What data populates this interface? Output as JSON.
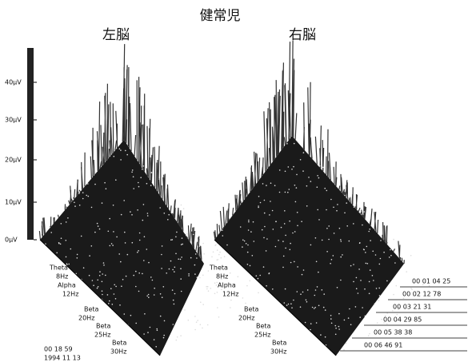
{
  "title": "健常児",
  "panels": [
    {
      "label": "左脳"
    },
    {
      "label": "右脳"
    }
  ],
  "amplitude_ticks": [
    "40μV",
    "30μV",
    "20μV",
    "10μV",
    "0μV"
  ],
  "frequency_labels": [
    "Theta",
    "8Hz",
    "Alpha",
    "12Hz",
    "Beta",
    "20Hz",
    "Beta",
    "25Hz",
    "Beta",
    "30Hz"
  ],
  "timestamp": {
    "time": "00 18 59",
    "date": "1994 11 13"
  },
  "time_labels": [
    "00 01 04 25",
    "00 02 12 78",
    "00 03 21 31",
    "00 04 29 85",
    "00 05 38 38",
    "00 06 46 91"
  ]
}
